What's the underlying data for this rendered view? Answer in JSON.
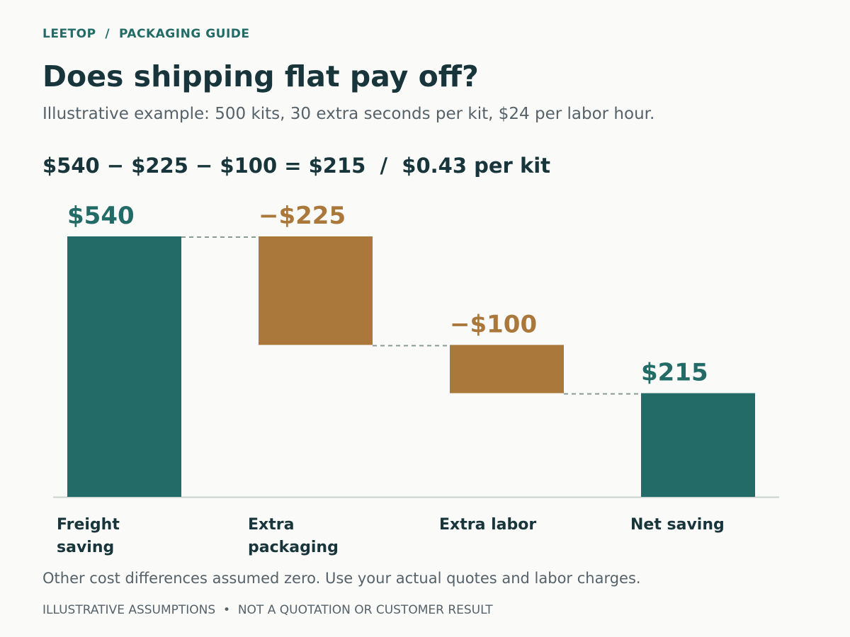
{
  "breadcrumb": "LEETOP  /  PACKAGING GUIDE",
  "chart_data": {
    "type": "waterfall",
    "title": "Does shipping flat pay off?",
    "subtitle": "Illustrative example: 500 kits, 30 extra seconds per kit, $24 per labor hour.",
    "formula": "$540 − $225 − $100 = $215  /  $0.43 per kit",
    "categories": [
      "Freight saving",
      "Extra packaging",
      "Extra labor",
      "Net saving"
    ],
    "values": [
      540,
      -225,
      -100,
      215
    ],
    "value_labels": [
      "$540",
      "−$225",
      "−$100",
      "$215"
    ],
    "measures": [
      "absolute",
      "relative",
      "relative",
      "total"
    ],
    "colors": {
      "positive": "#236b67",
      "negative": "#ab783b"
    },
    "note": "Other cost differences assumed zero. Use your actual quotes and labor charges.",
    "disclaimer": "ILLUSTRATIVE ASSUMPTIONS  •  NOT A QUOTATION OR CUSTOMER RESULT"
  }
}
